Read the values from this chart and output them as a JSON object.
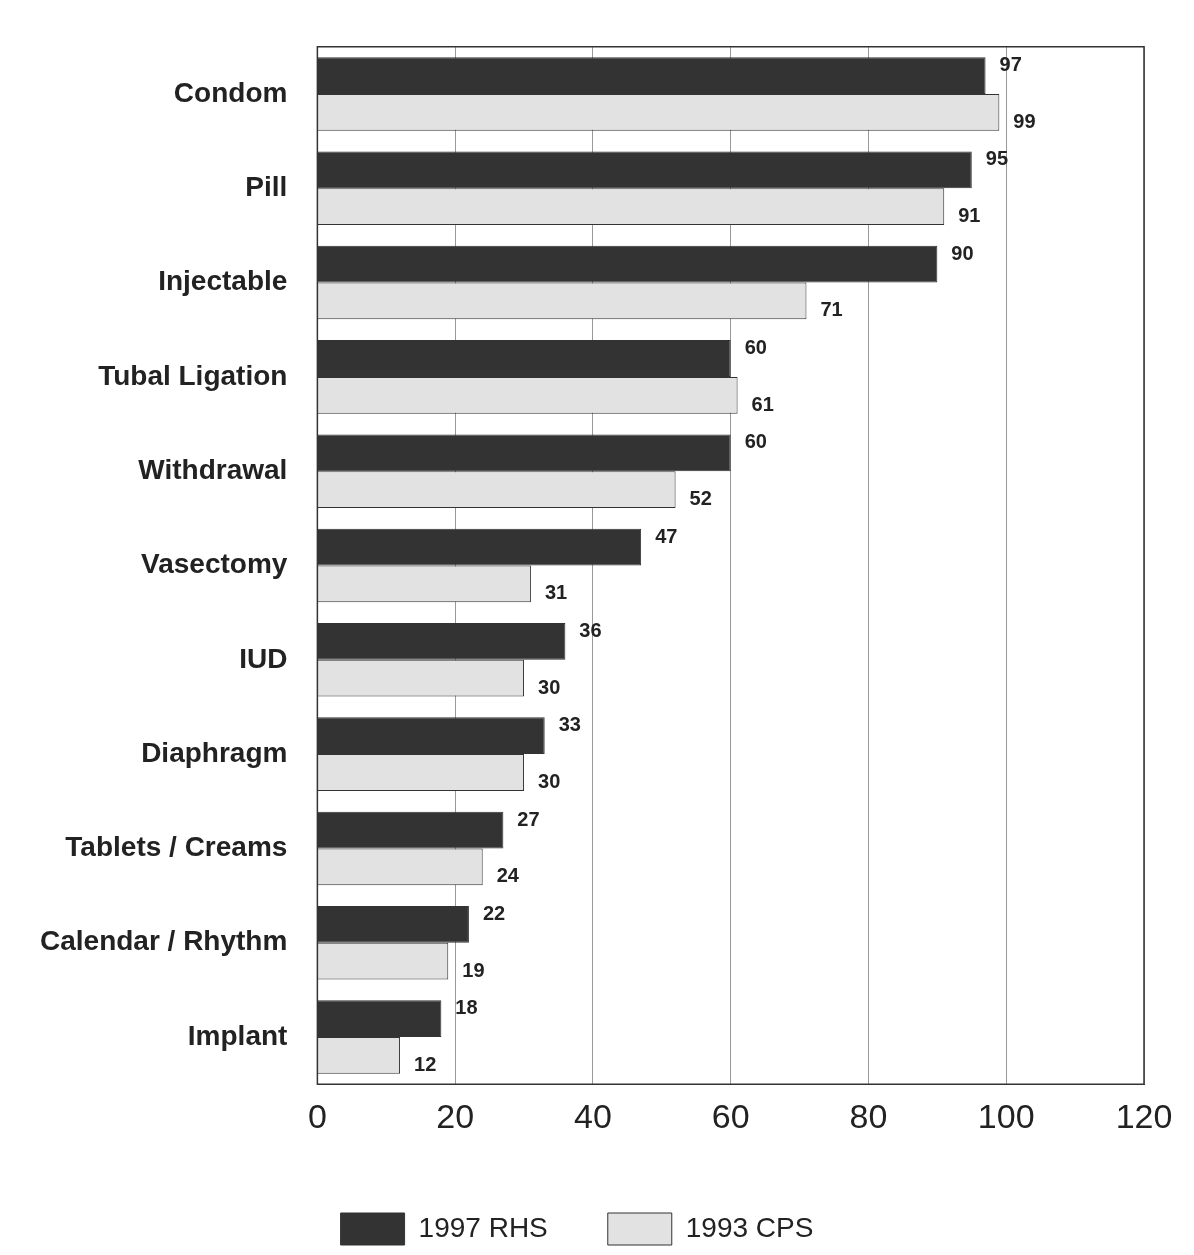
{
  "chart_data": {
    "type": "bar",
    "orientation": "horizontal",
    "categories": [
      "Condom",
      "Pill",
      "Injectable",
      "Tubal Ligation",
      "Withdrawal",
      "Vasectomy",
      "IUD",
      "Diaphragm",
      "Tablets / Creams",
      "Calendar / Rhythm",
      "Implant"
    ],
    "series": [
      {
        "name": "1997 RHS",
        "color": "#333333",
        "values": [
          97,
          95,
          90,
          60,
          60,
          47,
          36,
          33,
          27,
          22,
          18
        ]
      },
      {
        "name": "1993 CPS",
        "color": "#e2e2e2",
        "values": [
          99,
          91,
          71,
          61,
          52,
          31,
          30,
          30,
          24,
          19,
          12
        ]
      }
    ],
    "xlim": [
      0,
      120
    ],
    "xticks": [
      0,
      20,
      40,
      60,
      80,
      100,
      120
    ],
    "grid": "x",
    "legend": "bottom",
    "data_labels": true
  }
}
